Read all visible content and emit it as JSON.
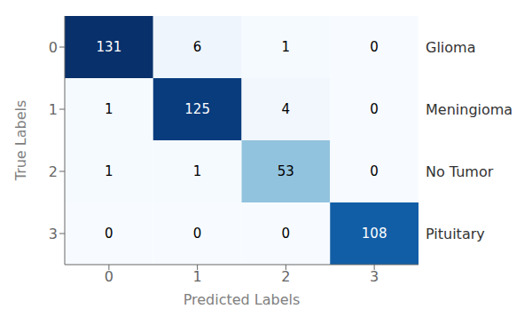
{
  "chart_data": {
    "type": "heatmap",
    "xlabel": "Predicted Labels",
    "ylabel": "True Labels",
    "x_categories": [
      "0",
      "1",
      "2",
      "3"
    ],
    "y_categories": [
      "0",
      "1",
      "2",
      "3"
    ],
    "cells": [
      [
        131,
        6,
        1,
        0
      ],
      [
        1,
        125,
        4,
        0
      ],
      [
        1,
        1,
        53,
        0
      ],
      [
        0,
        0,
        0,
        108
      ]
    ],
    "color_range": [
      0,
      131
    ],
    "data_labels": true,
    "annotations": [
      "Glioma",
      "Meningioma",
      "No Tumor",
      "Pituitary"
    ]
  }
}
